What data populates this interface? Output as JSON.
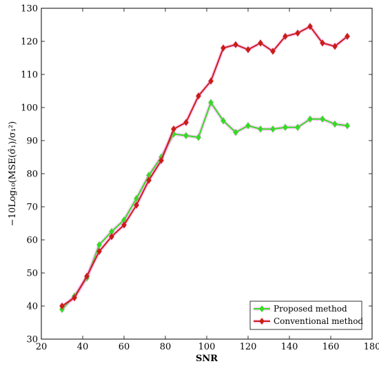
{
  "chart_data": {
    "type": "line",
    "xlabel": "SNR",
    "ylabel": "−10Log₁₀(MSE(σ̂₁)/σ₁²)",
    "xlim": [
      20,
      180
    ],
    "ylim": [
      30,
      130
    ],
    "xticks": [
      20,
      40,
      60,
      80,
      100,
      120,
      140,
      160,
      180
    ],
    "yticks": [
      30,
      40,
      50,
      60,
      70,
      80,
      90,
      100,
      110,
      120,
      130
    ],
    "legend_position": "bottom-right",
    "grid": false,
    "series": [
      {
        "name": "Proposed method",
        "color": "#33dd22",
        "glow": "#ff66ee",
        "marker": "diamond",
        "x": [
          30,
          36,
          42,
          48,
          54,
          60,
          66,
          72,
          78,
          84,
          90,
          96,
          102,
          108,
          114,
          120,
          126,
          132,
          138,
          144,
          150,
          156,
          162,
          168
        ],
        "y": [
          39,
          43,
          48.5,
          58.5,
          62.5,
          66,
          72.5,
          79.5,
          85,
          92,
          91.5,
          91,
          101.5,
          96,
          92.5,
          94.5,
          93.5,
          93.5,
          94,
          94,
          96.5,
          96.5,
          95,
          94.5
        ]
      },
      {
        "name": "Conventional method",
        "color": "#c81e14",
        "glow": "#ff66ee",
        "marker": "diamond",
        "x": [
          30,
          36,
          42,
          48,
          54,
          60,
          66,
          72,
          78,
          84,
          90,
          96,
          102,
          108,
          114,
          120,
          126,
          132,
          138,
          144,
          150,
          156,
          162,
          168
        ],
        "y": [
          40,
          42.5,
          49,
          56.5,
          61,
          64.5,
          70.5,
          78,
          84,
          93.5,
          95.5,
          103.5,
          108,
          118,
          119,
          117.5,
          119.5,
          117,
          121.5,
          122.5,
          124.5,
          119.5,
          118.5,
          121.5
        ]
      }
    ]
  }
}
